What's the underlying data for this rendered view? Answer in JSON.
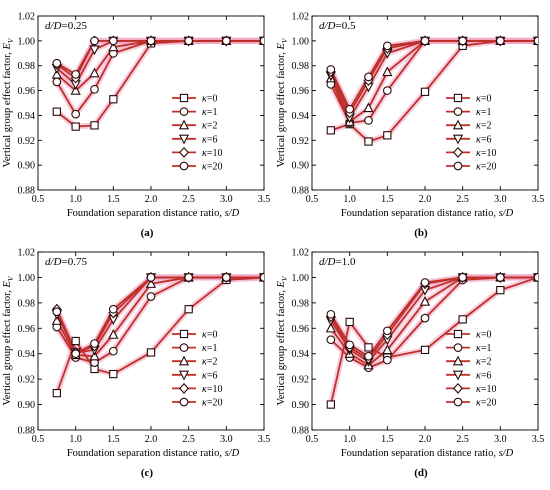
{
  "chart_data": [
    {
      "type": "line",
      "panel_label": "d/D=0.25",
      "subfigure": "(a)",
      "xlabel": "Foundation separation distance ratio, s/D",
      "ylabel": "Vertical group effect factor, E_V",
      "xlim": [
        0.5,
        3.5
      ],
      "ylim": [
        0.88,
        1.02
      ],
      "xticks": [
        "0.5",
        "1.0",
        "1.5",
        "2.0",
        "2.5",
        "3.0",
        "3.5"
      ],
      "yticks": [
        "0.88",
        "0.90",
        "0.92",
        "0.94",
        "0.96",
        "0.98",
        "1.00",
        "1.02"
      ],
      "legend_position": "center-right",
      "series": [
        {
          "name": "κ=0",
          "marker": "square",
          "x": [
            0.75,
            1.0,
            1.25,
            1.5,
            2.0,
            2.5,
            3.0,
            3.5
          ],
          "y": [
            0.943,
            0.931,
            0.932,
            0.953,
            0.998,
            1.0,
            1.0,
            1.0
          ]
        },
        {
          "name": "κ=1",
          "marker": "circle",
          "x": [
            0.75,
            1.0,
            1.25,
            1.5,
            2.0,
            2.5,
            3.0,
            3.5
          ],
          "y": [
            0.967,
            0.941,
            0.961,
            0.99,
            1.0,
            1.0,
            1.0,
            1.0
          ]
        },
        {
          "name": "κ=2",
          "marker": "triangle-up",
          "x": [
            0.75,
            1.0,
            1.25,
            1.5,
            2.0,
            2.5,
            3.0,
            3.5
          ],
          "y": [
            0.973,
            0.96,
            0.974,
            0.995,
            1.0,
            1.0,
            1.0,
            1.0
          ]
        },
        {
          "name": "κ=6",
          "marker": "triangle-down",
          "x": [
            0.75,
            1.0,
            1.25,
            1.5,
            2.0,
            2.5,
            3.0,
            3.5
          ],
          "y": [
            0.978,
            0.965,
            0.993,
            1.0,
            1.0,
            1.0,
            1.0,
            1.0
          ]
        },
        {
          "name": "κ=10",
          "marker": "diamond",
          "x": [
            0.75,
            1.0,
            1.25,
            1.5,
            2.0,
            2.5,
            3.0,
            3.5
          ],
          "y": [
            0.981,
            0.97,
            1.0,
            1.0,
            1.0,
            1.0,
            1.0,
            1.0
          ]
        },
        {
          "name": "κ=20",
          "marker": "circle",
          "x": [
            0.75,
            1.0,
            1.25,
            1.5,
            2.0,
            2.5,
            3.0,
            3.5
          ],
          "y": [
            0.982,
            0.973,
            1.0,
            1.0,
            1.0,
            1.0,
            1.0,
            1.0
          ]
        }
      ]
    },
    {
      "type": "line",
      "panel_label": "d/D=0.5",
      "subfigure": "(b)",
      "xlabel": "Foundation separation distance ratio, s/D",
      "ylabel": "Vertical group effect factor, E_V",
      "xlim": [
        0.5,
        3.5
      ],
      "ylim": [
        0.88,
        1.02
      ],
      "xticks": [
        "0.5",
        "1.0",
        "1.5",
        "2.0",
        "2.5",
        "3.0",
        "3.5"
      ],
      "yticks": [
        "0.88",
        "0.90",
        "0.92",
        "0.94",
        "0.96",
        "0.98",
        "1.00",
        "1.02"
      ],
      "legend_position": "center-right",
      "series": [
        {
          "name": "κ=0",
          "marker": "square",
          "x": [
            0.75,
            1.0,
            1.25,
            1.5,
            2.0,
            2.5,
            3.0,
            3.5
          ],
          "y": [
            0.928,
            0.933,
            0.919,
            0.924,
            0.959,
            0.996,
            1.0,
            1.0
          ]
        },
        {
          "name": "κ=1",
          "marker": "circle",
          "x": [
            0.75,
            1.0,
            1.25,
            1.5,
            2.0,
            2.5,
            3.0,
            3.5
          ],
          "y": [
            0.965,
            0.934,
            0.936,
            0.96,
            1.0,
            1.0,
            1.0,
            1.0
          ]
        },
        {
          "name": "κ=2",
          "marker": "triangle-up",
          "x": [
            0.75,
            1.0,
            1.25,
            1.5,
            2.0,
            2.5,
            3.0,
            3.5
          ],
          "y": [
            0.97,
            0.935,
            0.946,
            0.975,
            1.0,
            1.0,
            1.0,
            1.0
          ]
        },
        {
          "name": "κ=6",
          "marker": "triangle-down",
          "x": [
            0.75,
            1.0,
            1.25,
            1.5,
            2.0,
            2.5,
            3.0,
            3.5
          ],
          "y": [
            0.972,
            0.938,
            0.963,
            0.99,
            1.0,
            1.0,
            1.0,
            1.0
          ]
        },
        {
          "name": "κ=10",
          "marker": "diamond",
          "x": [
            0.75,
            1.0,
            1.25,
            1.5,
            2.0,
            2.5,
            3.0,
            3.5
          ],
          "y": [
            0.975,
            0.942,
            0.968,
            0.994,
            1.0,
            1.0,
            1.0,
            1.0
          ]
        },
        {
          "name": "κ=20",
          "marker": "circle",
          "x": [
            0.75,
            1.0,
            1.25,
            1.5,
            2.0,
            2.5,
            3.0,
            3.5
          ],
          "y": [
            0.977,
            0.945,
            0.971,
            0.996,
            1.0,
            1.0,
            1.0,
            1.0
          ]
        }
      ]
    },
    {
      "type": "line",
      "panel_label": "d/D=0.75",
      "subfigure": "(c)",
      "xlabel": "Foundation separation distance ratio, s/D",
      "ylabel": "Vertical group effect factor, E_V",
      "xlim": [
        0.5,
        3.5
      ],
      "ylim": [
        0.88,
        1.02
      ],
      "xticks": [
        "0.5",
        "1.0",
        "1.5",
        "2.0",
        "2.5",
        "3.0",
        "3.5"
      ],
      "yticks": [
        "0.88",
        "0.90",
        "0.92",
        "0.94",
        "0.96",
        "0.98",
        "1.00",
        "1.02"
      ],
      "legend_position": "center-right",
      "series": [
        {
          "name": "κ=0",
          "marker": "square",
          "x": [
            0.75,
            1.0,
            1.25,
            1.5,
            2.0,
            2.5,
            3.0,
            3.5
          ],
          "y": [
            0.909,
            0.95,
            0.928,
            0.924,
            0.941,
            0.975,
            0.998,
            1.0
          ]
        },
        {
          "name": "κ=1",
          "marker": "circle",
          "x": [
            0.75,
            1.0,
            1.25,
            1.5,
            2.0,
            2.5,
            3.0,
            3.5
          ],
          "y": [
            0.961,
            0.937,
            0.933,
            0.942,
            0.985,
            1.0,
            1.0,
            1.0
          ]
        },
        {
          "name": "κ=2",
          "marker": "triangle-up",
          "x": [
            0.75,
            1.0,
            1.25,
            1.5,
            2.0,
            2.5,
            3.0,
            3.5
          ],
          "y": [
            0.966,
            0.939,
            0.938,
            0.955,
            0.995,
            1.0,
            1.0,
            1.0
          ]
        },
        {
          "name": "κ=6",
          "marker": "triangle-down",
          "x": [
            0.75,
            1.0,
            1.25,
            1.5,
            2.0,
            2.5,
            3.0,
            3.5
          ],
          "y": [
            0.971,
            0.941,
            0.943,
            0.967,
            1.0,
            1.0,
            1.0,
            1.0
          ]
        },
        {
          "name": "κ=10",
          "marker": "diamond",
          "x": [
            0.75,
            1.0,
            1.25,
            1.5,
            2.0,
            2.5,
            3.0,
            3.5
          ],
          "y": [
            0.975,
            0.941,
            0.946,
            0.972,
            1.0,
            1.0,
            1.0,
            1.0
          ]
        },
        {
          "name": "κ=20",
          "marker": "circle",
          "x": [
            0.75,
            1.0,
            1.25,
            1.5,
            2.0,
            2.5,
            3.0,
            3.5
          ],
          "y": [
            0.973,
            0.94,
            0.948,
            0.975,
            1.0,
            1.0,
            1.0,
            1.0
          ]
        }
      ]
    },
    {
      "type": "line",
      "panel_label": "d/D=1.0",
      "subfigure": "(d)",
      "xlabel": "Foundation separation distance ratio, s/D",
      "ylabel": "Vertical group effect factor, E_V",
      "xlim": [
        0.5,
        3.5
      ],
      "ylim": [
        0.88,
        1.02
      ],
      "xticks": [
        "0.5",
        "1.0",
        "1.5",
        "2.0",
        "2.5",
        "3.0",
        "3.5"
      ],
      "yticks": [
        "0.88",
        "0.90",
        "0.92",
        "0.94",
        "0.96",
        "0.98",
        "1.00",
        "1.02"
      ],
      "legend_position": "center-right",
      "series": [
        {
          "name": "κ=0",
          "marker": "square",
          "x": [
            0.75,
            1.0,
            1.25,
            1.5,
            2.0,
            2.5,
            3.0,
            3.5
          ],
          "y": [
            0.9,
            0.965,
            0.945,
            0.937,
            0.943,
            0.967,
            0.99,
            1.0
          ]
        },
        {
          "name": "κ=1",
          "marker": "circle",
          "x": [
            0.75,
            1.0,
            1.25,
            1.5,
            2.0,
            2.5,
            3.0,
            3.5
          ],
          "y": [
            0.951,
            0.937,
            0.929,
            0.935,
            0.968,
            0.998,
            1.0,
            1.0
          ]
        },
        {
          "name": "κ=2",
          "marker": "triangle-up",
          "x": [
            0.75,
            1.0,
            1.25,
            1.5,
            2.0,
            2.5,
            3.0,
            3.5
          ],
          "y": [
            0.96,
            0.94,
            0.931,
            0.943,
            0.981,
            1.0,
            1.0,
            1.0
          ]
        },
        {
          "name": "κ=6",
          "marker": "triangle-down",
          "x": [
            0.75,
            1.0,
            1.25,
            1.5,
            2.0,
            2.5,
            3.0,
            3.5
          ],
          "y": [
            0.966,
            0.943,
            0.934,
            0.951,
            0.99,
            1.0,
            1.0,
            1.0
          ]
        },
        {
          "name": "κ=10",
          "marker": "diamond",
          "x": [
            0.75,
            1.0,
            1.25,
            1.5,
            2.0,
            2.5,
            3.0,
            3.5
          ],
          "y": [
            0.969,
            0.945,
            0.936,
            0.955,
            0.995,
            1.0,
            1.0,
            1.0
          ]
        },
        {
          "name": "κ=20",
          "marker": "circle",
          "x": [
            0.75,
            1.0,
            1.25,
            1.5,
            2.0,
            2.5,
            3.0,
            3.5
          ],
          "y": [
            0.971,
            0.947,
            0.938,
            0.958,
            0.996,
            1.0,
            1.0,
            1.0
          ]
        }
      ]
    }
  ],
  "colors": {
    "line": "#c0302a",
    "line_glow": "#f0a8c4",
    "marker_stroke": "#2a0a0a",
    "marker_fill": "#ffffff",
    "axis": "#000000"
  }
}
